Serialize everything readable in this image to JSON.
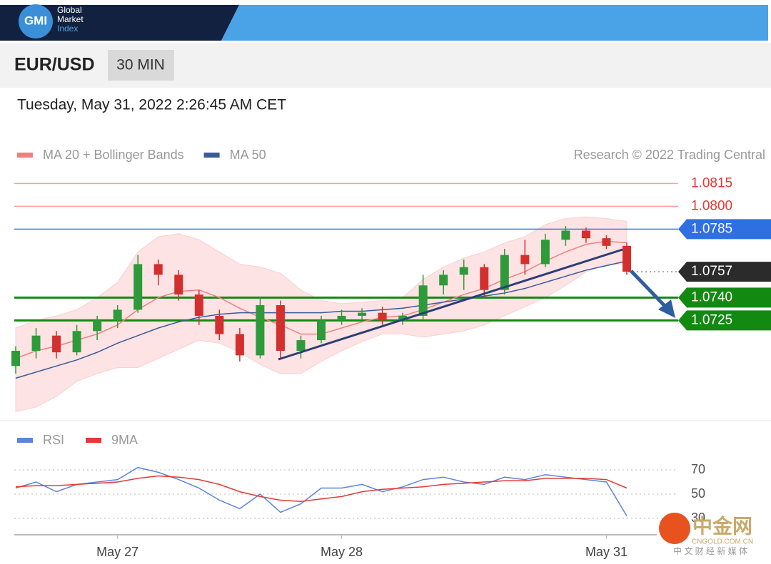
{
  "header": {
    "logo": "GMI",
    "brand": [
      "Global",
      "Market",
      "Index"
    ]
  },
  "symbol": "EUR/USD",
  "interval": "30 MIN",
  "timestamp": "Tuesday, May 31, 2022 2:26:45 AM CET",
  "watermark": {
    "title": "中金网",
    "site": "CNGOLD.COM.CN",
    "tagline": "中 文 财 经 新 媒 体"
  },
  "chart_data": [
    {
      "type": "candlestick",
      "credit": "Research © 2022 Trading Central",
      "categories": [
        null,
        null,
        null,
        null,
        null,
        "May 27",
        null,
        null,
        null,
        null,
        null,
        null,
        null,
        null,
        null,
        null,
        "May 28",
        null,
        null,
        null,
        null,
        null,
        null,
        null,
        null,
        null,
        null,
        null,
        null,
        "May 31",
        null
      ],
      "open": [
        1.0695,
        1.0705,
        1.0715,
        1.0704,
        1.0718,
        1.0725,
        1.0732,
        1.0762,
        1.0755,
        1.0742,
        1.0728,
        1.0716,
        1.0702,
        1.0735,
        1.0705,
        1.0712,
        1.0725,
        1.0728,
        1.073,
        1.0725,
        1.0728,
        1.0748,
        1.0755,
        1.076,
        1.0745,
        1.0768,
        1.0762,
        1.0778,
        1.0784,
        1.0779,
        1.0774
      ],
      "high": [
        1.0708,
        1.072,
        1.0718,
        1.0722,
        1.0728,
        1.0735,
        1.0768,
        1.0765,
        1.0758,
        1.0745,
        1.0732,
        1.072,
        1.074,
        1.0738,
        1.0715,
        1.0728,
        1.0732,
        1.0733,
        1.0734,
        1.073,
        1.0755,
        1.0758,
        1.0765,
        1.0762,
        1.0772,
        1.0778,
        1.0782,
        1.0787,
        1.0786,
        1.0781,
        1.0776
      ],
      "low": [
        1.069,
        1.07,
        1.07,
        1.0702,
        1.0712,
        1.072,
        1.073,
        1.0748,
        1.0738,
        1.0722,
        1.0712,
        1.0698,
        1.07,
        1.07,
        1.07,
        1.071,
        1.0722,
        1.0725,
        1.0722,
        1.0722,
        1.0725,
        1.0742,
        1.0745,
        1.074,
        1.0742,
        1.0755,
        1.076,
        1.0774,
        1.0776,
        1.0772,
        1.0755
      ],
      "close": [
        1.0705,
        1.0715,
        1.0704,
        1.0718,
        1.0725,
        1.0732,
        1.0762,
        1.0755,
        1.0742,
        1.0728,
        1.0716,
        1.0702,
        1.0735,
        1.0705,
        1.0712,
        1.0725,
        1.0728,
        1.073,
        1.0725,
        1.0728,
        1.0748,
        1.0755,
        1.076,
        1.0745,
        1.0768,
        1.0762,
        1.0778,
        1.0784,
        1.0779,
        1.0774,
        1.0757
      ],
      "up_color": "#2e9a3a",
      "down_color": "#d32f2f",
      "series": [
        {
          "name": "MA 20 + Bollinger Bands",
          "color": "#f08080",
          "values": [
            1.07,
            1.0705,
            1.0708,
            1.0712,
            1.0716,
            1.0722,
            1.0732,
            1.074,
            1.0744,
            1.0745,
            1.074,
            1.0733,
            1.0727,
            1.0722,
            1.0716,
            1.0716,
            1.072,
            1.0724,
            1.0727,
            1.0728,
            1.0732,
            1.0737,
            1.0742,
            1.0746,
            1.0752,
            1.0757,
            1.0764,
            1.077,
            1.0775,
            1.0777,
            1.0776
          ],
          "upper": [
            1.072,
            1.0725,
            1.0728,
            1.0732,
            1.074,
            1.075,
            1.077,
            1.078,
            1.0782,
            1.0778,
            1.077,
            1.0762,
            1.076,
            1.0756,
            1.0745,
            1.0738,
            1.0736,
            1.0737,
            1.0738,
            1.074,
            1.0752,
            1.076,
            1.0766,
            1.077,
            1.0776,
            1.078,
            1.0788,
            1.0792,
            1.0793,
            1.0792,
            1.079
          ],
          "lower": [
            1.0665,
            1.0668,
            1.0675,
            1.0685,
            1.069,
            1.0694,
            1.0694,
            1.07,
            1.0706,
            1.0712,
            1.071,
            1.0704,
            1.0696,
            1.069,
            1.069,
            1.0698,
            1.0705,
            1.0711,
            1.0716,
            1.0716,
            1.0714,
            1.0716,
            1.0718,
            1.0722,
            1.0728,
            1.0734,
            1.074,
            1.0748,
            1.0757,
            1.0762,
            1.0762
          ]
        },
        {
          "name": "MA 50",
          "color": "#3a5a9a",
          "values": [
            1.0687,
            1.0691,
            1.0695,
            1.0699,
            1.0704,
            1.071,
            1.0715,
            1.072,
            1.0724,
            1.0727,
            1.0729,
            1.073,
            1.073,
            1.073,
            1.073,
            1.073,
            1.0731,
            1.0731,
            1.0732,
            1.0733,
            1.0735,
            1.0737,
            1.0739,
            1.0741,
            1.0743,
            1.0746,
            1.075,
            1.0754,
            1.0758,
            1.0761,
            1.0764
          ]
        }
      ],
      "ylim": [
        1.066,
        1.0825
      ],
      "levels": [
        {
          "value": 1.0815,
          "line_color": "#f4a0a0",
          "text_color": "#e53935",
          "box_color": null,
          "dashed": false
        },
        {
          "value": 1.08,
          "label": "1.0800",
          "line_color": "#f4a0a0",
          "text_color": "#e53935",
          "box_color": null,
          "dashed": false
        },
        {
          "value": 1.0785,
          "line_color": "#4a7be0",
          "text_color": "#ffffff",
          "box_color": "#2f6fe4",
          "dashed": false
        },
        {
          "value": 1.0757,
          "line_color": "#888888",
          "text_color": "#ffffff",
          "box_color": "#2b2b2b",
          "dashed": true
        },
        {
          "value": 1.074,
          "label": "1.0740",
          "line_color": "#128a12",
          "text_color": "#ffffff",
          "box_color": "#128a12",
          "dashed": false
        },
        {
          "value": 1.0725,
          "line_color": "#128a12",
          "text_color": "#ffffff",
          "box_color": "#128a12",
          "dashed": false
        }
      ]
    },
    {
      "type": "line",
      "series": [
        {
          "name": "RSI",
          "color": "#5b84e0",
          "values": [
            55,
            60,
            52,
            58,
            60,
            62,
            72,
            68,
            62,
            55,
            45,
            38,
            50,
            35,
            42,
            55,
            55,
            58,
            52,
            56,
            62,
            64,
            60,
            58,
            64,
            62,
            66,
            64,
            62,
            60,
            32
          ]
        },
        {
          "name": "9MA",
          "color": "#e53935",
          "values": [
            56,
            57,
            57,
            58,
            59,
            60,
            63,
            65,
            64,
            62,
            58,
            52,
            48,
            45,
            44,
            46,
            48,
            52,
            54,
            55,
            56,
            58,
            59,
            60,
            61,
            61,
            63,
            63,
            63,
            62,
            55
          ]
        }
      ],
      "ylim": [
        20,
        80
      ],
      "yticks": [
        30,
        50,
        70
      ],
      "grid": true
    }
  ]
}
